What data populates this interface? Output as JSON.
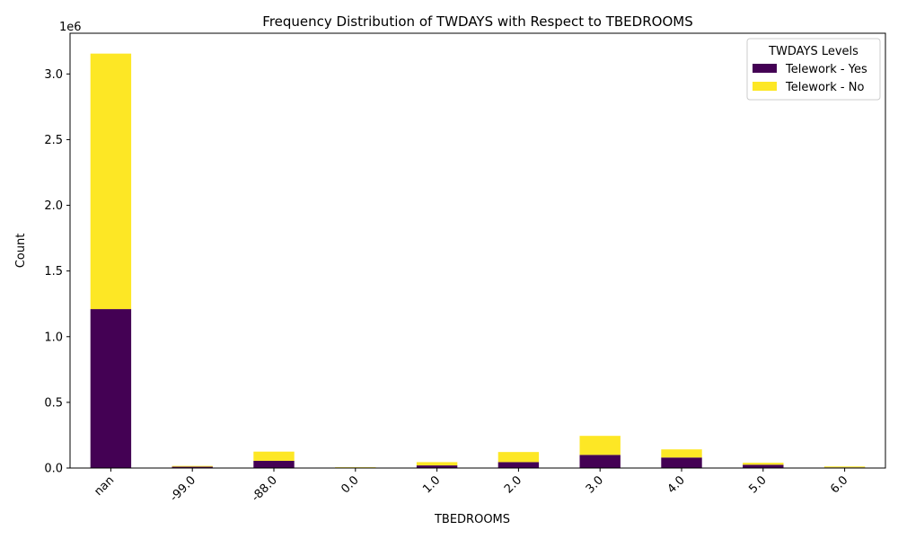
{
  "chart_data": {
    "type": "bar",
    "stacked": true,
    "title": "Frequency Distribution of TWDAYS with Respect to TBEDROOMS",
    "xlabel": "TBEDROOMS",
    "ylabel": "Count",
    "y_scale_label": "1e6",
    "categories": [
      "nan",
      "-99.0",
      "-88.0",
      "0.0",
      "1.0",
      "2.0",
      "3.0",
      "4.0",
      "5.0",
      "6.0"
    ],
    "series": [
      {
        "name": "Telework - Yes",
        "color": "#440154",
        "values": [
          1210000,
          10000,
          55000,
          3000,
          20000,
          45000,
          100000,
          80000,
          25000,
          5000
        ]
      },
      {
        "name": "Telework - No",
        "color": "#fde725",
        "values": [
          1945000,
          6000,
          70000,
          3000,
          25000,
          77000,
          145000,
          62000,
          15000,
          7000
        ]
      }
    ],
    "ylim": [
      0,
      3310000
    ],
    "yticks": [
      0,
      500000,
      1000000,
      1500000,
      2000000,
      2500000,
      3000000
    ],
    "ytick_labels": [
      "0.0",
      "0.5",
      "1.0",
      "1.5",
      "2.0",
      "2.5",
      "3.0"
    ],
    "grid": false,
    "legend": {
      "title": "TWDAYS Levels",
      "placement": "top-right"
    }
  }
}
